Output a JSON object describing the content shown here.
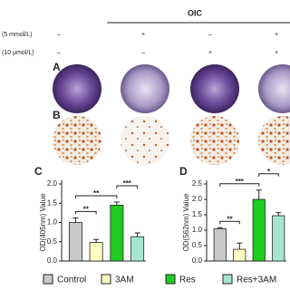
{
  "header": {
    "title": "OIC",
    "rows": [
      {
        "label": "(5 mmol/L)",
        "signs": [
          "–",
          "+",
          "–",
          "+"
        ]
      },
      {
        "label": "(10 μmol/L)",
        "signs": [
          "–",
          "–",
          "+",
          "+"
        ]
      }
    ]
  },
  "panels": {
    "a": "A",
    "b": "B"
  },
  "legend": {
    "items": [
      {
        "name": "Control",
        "color": "#c8c8c8"
      },
      {
        "name": "3AM",
        "color": "#ffffc2"
      },
      {
        "name": "Res",
        "color": "#1fcc1f"
      },
      {
        "name": "Res+3AM",
        "color": "#a6e6cf"
      }
    ]
  },
  "chart_data": [
    {
      "type": "bar",
      "panel": "C",
      "ylabel": "OD(405nm) Value",
      "values": [
        1.0,
        0.48,
        1.45,
        0.63
      ],
      "errors": [
        0.12,
        0.08,
        0.08,
        0.1
      ],
      "ylim": [
        0,
        2.0
      ],
      "yticks": [
        {
          "value": 0,
          "label": "0.0"
        },
        {
          "value": 0.5,
          "label": "0.5"
        },
        {
          "value": 1,
          "label": "1.0"
        },
        {
          "value": 1.5,
          "label": "1.5"
        },
        {
          "value": 2,
          "label": "2.0"
        }
      ],
      "significance": [
        {
          "label": "**",
          "from": 0,
          "to": 1
        },
        {
          "label": "**",
          "from": 0,
          "to": 2
        },
        {
          "label": "***",
          "from": 2,
          "to": 3
        }
      ]
    },
    {
      "type": "bar",
      "panel": "D",
      "ylabel": "OD(562nm) Value",
      "values": [
        1.05,
        0.38,
        2.0,
        1.47
      ],
      "errors": [
        0.03,
        0.2,
        0.3,
        0.1
      ],
      "ylim": [
        0,
        2.5
      ],
      "yticks": [
        {
          "value": 0,
          "label": "0.0"
        },
        {
          "value": 0.5,
          "label": "0.5"
        },
        {
          "value": 1,
          "label": "1.0"
        },
        {
          "value": 1.5,
          "label": "1.5"
        },
        {
          "value": 2,
          "label": "2.0"
        },
        {
          "value": 2.5,
          "label": "2.5"
        }
      ],
      "significance": [
        {
          "label": "**",
          "from": 0,
          "to": 1
        },
        {
          "label": "***",
          "from": 0,
          "to": 2
        },
        {
          "label": "*",
          "from": 2,
          "to": 3
        }
      ]
    }
  ]
}
